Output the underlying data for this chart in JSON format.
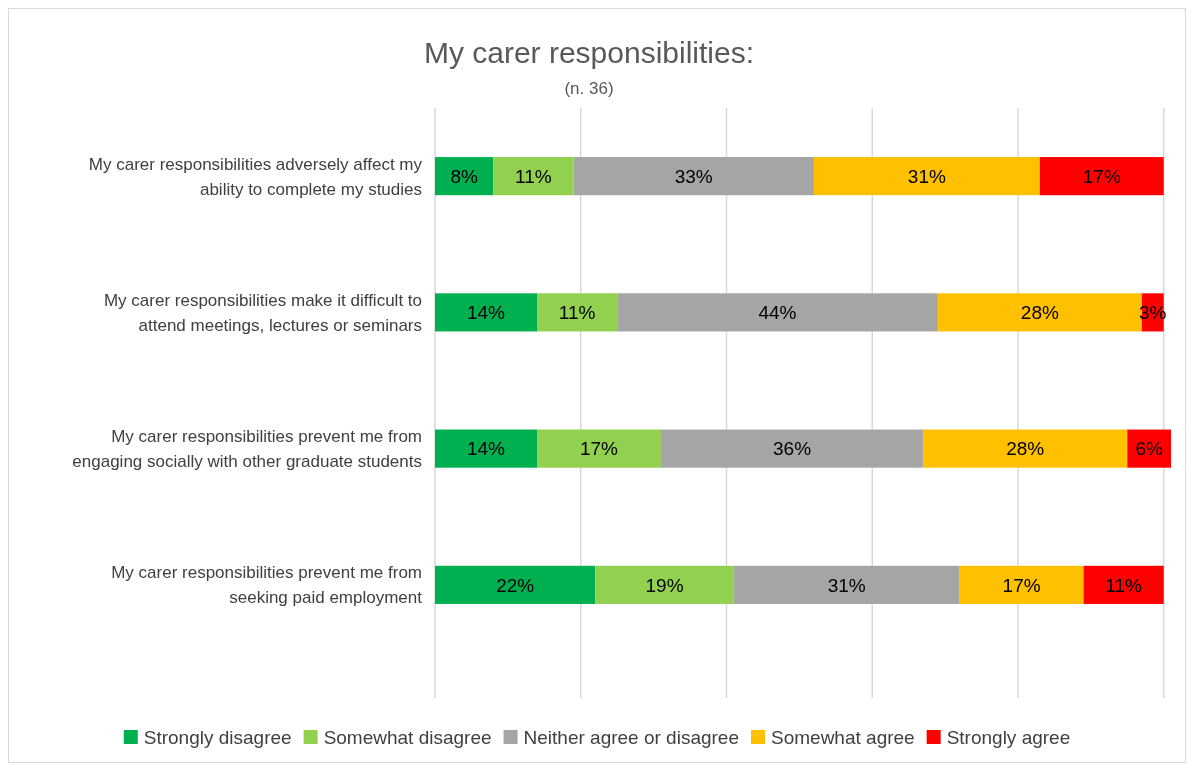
{
  "chart_data": {
    "type": "bar",
    "orientation": "horizontal",
    "stacked": true,
    "title": "My carer responsibilities:",
    "subtitle": "(n. 36)",
    "categories": [
      "My carer responsibilities adversely affect my ability to complete my studies",
      "My carer responsibilities make it difficult to attend meetings, lectures or seminars",
      "My carer responsibilities prevent me from engaging socially with other graduate students",
      "My carer responsibilities prevent me from seeking paid employment"
    ],
    "series": [
      {
        "name": "Strongly disagree",
        "color": "#00b050",
        "values": [
          8,
          14,
          14,
          22
        ],
        "value_labels": [
          "8%",
          "14%",
          "14%",
          "22%"
        ]
      },
      {
        "name": "Somewhat disagree",
        "color": "#92d050",
        "values": [
          11,
          11,
          17,
          19
        ],
        "value_labels": [
          "11%",
          "11%",
          "17%",
          "19%"
        ]
      },
      {
        "name": "Neither agree or disagree",
        "color": "#a5a5a5",
        "values": [
          33,
          44,
          36,
          31
        ],
        "value_labels": [
          "33%",
          "44%",
          "36%",
          "31%"
        ]
      },
      {
        "name": "Somewhat agree",
        "color": "#ffc000",
        "values": [
          31,
          28,
          28,
          17
        ],
        "value_labels": [
          "31%",
          "28%",
          "28%",
          "17%"
        ]
      },
      {
        "name": "Strongly agree",
        "color": "#ff0000",
        "values": [
          17,
          3,
          6,
          11
        ],
        "value_labels": [
          "17%",
          "3%",
          "6%",
          "11%"
        ]
      }
    ],
    "xlim": [
      0,
      101
    ],
    "xticks": [
      {
        "value": 0,
        "label": null
      },
      {
        "value": 20,
        "label": null
      },
      {
        "value": 40,
        "label": null
      },
      {
        "value": 60,
        "label": null
      },
      {
        "value": 80,
        "label": null
      },
      {
        "value": 100,
        "label": null
      }
    ],
    "tick_labels": "y",
    "grid": "x",
    "legend": "bottom"
  }
}
